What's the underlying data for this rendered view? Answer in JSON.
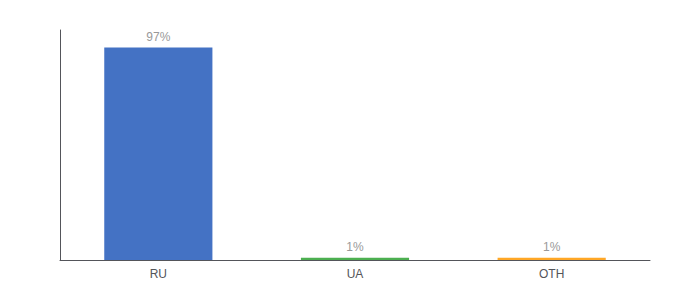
{
  "chart_data": {
    "type": "bar",
    "categories": [
      "RU",
      "UA",
      "OTH"
    ],
    "values": [
      97,
      1,
      1
    ],
    "value_labels": [
      "97%",
      "1%",
      "1%"
    ],
    "colors": [
      "#4472c4",
      "#4caf50",
      "#ffa726"
    ],
    "ylim": [
      0,
      105
    ],
    "grid": false,
    "data_labels": true,
    "tick_labels": "x"
  }
}
